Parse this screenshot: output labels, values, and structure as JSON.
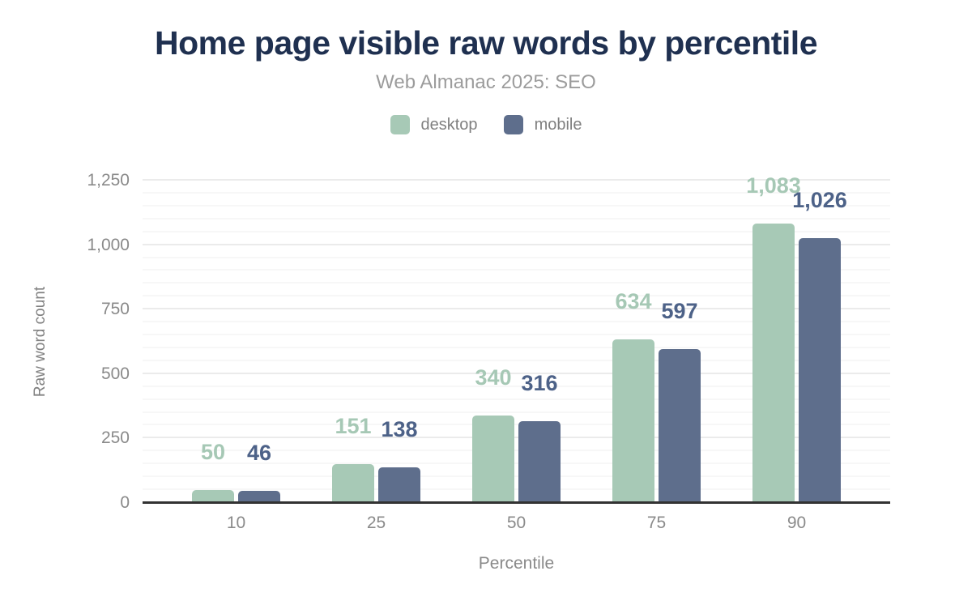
{
  "chart_data": {
    "type": "bar",
    "title": "Home page visible raw words by percentile",
    "subtitle": "Web Almanac 2025: SEO",
    "xlabel": "Percentile",
    "ylabel": "Raw word count",
    "categories": [
      "10",
      "25",
      "50",
      "75",
      "90"
    ],
    "series": [
      {
        "name": "desktop",
        "color": "#a7c9b6",
        "label_color": "#a6c8b5",
        "values": [
          50,
          151,
          340,
          634,
          1083
        ],
        "value_labels": [
          "50",
          "151",
          "340",
          "634",
          "1,083"
        ]
      },
      {
        "name": "mobile",
        "color": "#5e6e8c",
        "label_color": "#4d6288",
        "values": [
          46,
          138,
          316,
          597,
          1026
        ],
        "value_labels": [
          "46",
          "138",
          "316",
          "597",
          "1,026"
        ]
      }
    ],
    "ylim": [
      0,
      1250
    ],
    "yticks": [
      {
        "value": 0,
        "label": "0"
      },
      {
        "value": 250,
        "label": "250"
      },
      {
        "value": 500,
        "label": "500"
      },
      {
        "value": 750,
        "label": "750"
      },
      {
        "value": 1000,
        "label": "1,000"
      },
      {
        "value": 1250,
        "label": "1,250"
      }
    ],
    "y_minor_step": 50,
    "grid": true,
    "legend_position": "top",
    "axis_line_color": "#323232",
    "title_color": "#1f3050"
  }
}
